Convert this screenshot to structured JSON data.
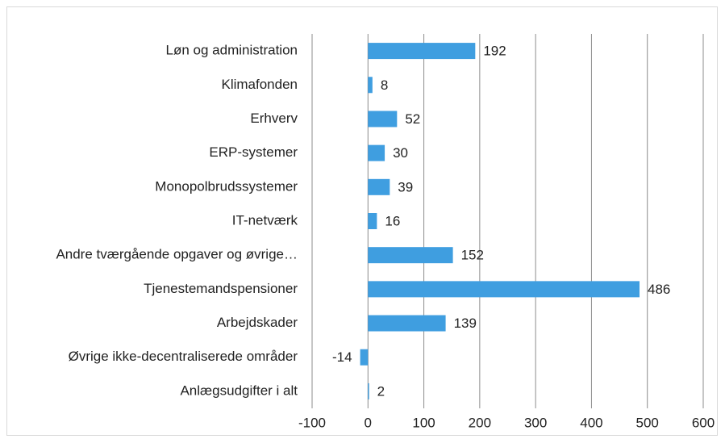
{
  "chart_data": {
    "type": "bar",
    "orientation": "horizontal",
    "categories": [
      "Løn og administration",
      "Klimafonden",
      "Erhverv",
      "ERP-systemer",
      "Monopolbrudssystemer",
      "IT-netværk",
      "Andre tværgående opgaver og øvrige…",
      "Tjenestemandspensioner",
      "Arbejdskader",
      "Øvrige ikke-decentraliserede områder",
      "Anlægsudgifter i alt"
    ],
    "values": [
      192,
      8,
      52,
      30,
      39,
      16,
      152,
      486,
      139,
      -14,
      2
    ],
    "color": "#3f9ee0",
    "xlim": [
      -100,
      600
    ],
    "xticks": [
      -100,
      0,
      100,
      200,
      300,
      400,
      500,
      600
    ],
    "grid": true
  }
}
